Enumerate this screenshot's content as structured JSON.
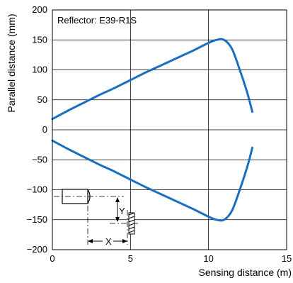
{
  "chart_data": {
    "type": "line",
    "title": "",
    "annotation": "Reflector: E39-R1S",
    "xlabel": "Sensing distance (m)",
    "ylabel": "Parallel distance (mm)",
    "xlim": [
      0,
      15
    ],
    "ylim": [
      -200,
      200
    ],
    "xticks": [
      0,
      5,
      10,
      15
    ],
    "yticks": [
      -200,
      -150,
      -100,
      -50,
      0,
      50,
      100,
      150,
      200
    ],
    "ytick_labels": [
      "−200",
      "−150",
      "−100",
      "−50",
      "0",
      "50",
      "100",
      "150",
      "200"
    ],
    "grid": true,
    "line_color": "#1a6fc2",
    "series": [
      {
        "x": [
          0,
          1,
          2,
          3,
          4,
          5,
          6,
          7,
          8,
          9,
          10,
          10.5,
          11,
          11.5,
          12,
          12.5,
          12.8
        ],
        "y": [
          18,
          32,
          45,
          58,
          70,
          83,
          96,
          108,
          120,
          132,
          145,
          150,
          150,
          135,
          100,
          60,
          30
        ]
      },
      {
        "x": [
          0,
          1,
          2,
          3,
          4,
          5,
          6,
          7,
          8,
          9,
          10,
          10.5,
          11,
          11.5,
          12,
          12.5,
          12.8
        ],
        "y": [
          -18,
          -32,
          -45,
          -58,
          -70,
          -83,
          -96,
          -108,
          -120,
          -132,
          -145,
          -150,
          -150,
          -135,
          -100,
          -60,
          -30
        ]
      }
    ],
    "inset": {
      "x_label": "X",
      "y_label": "Y"
    }
  }
}
